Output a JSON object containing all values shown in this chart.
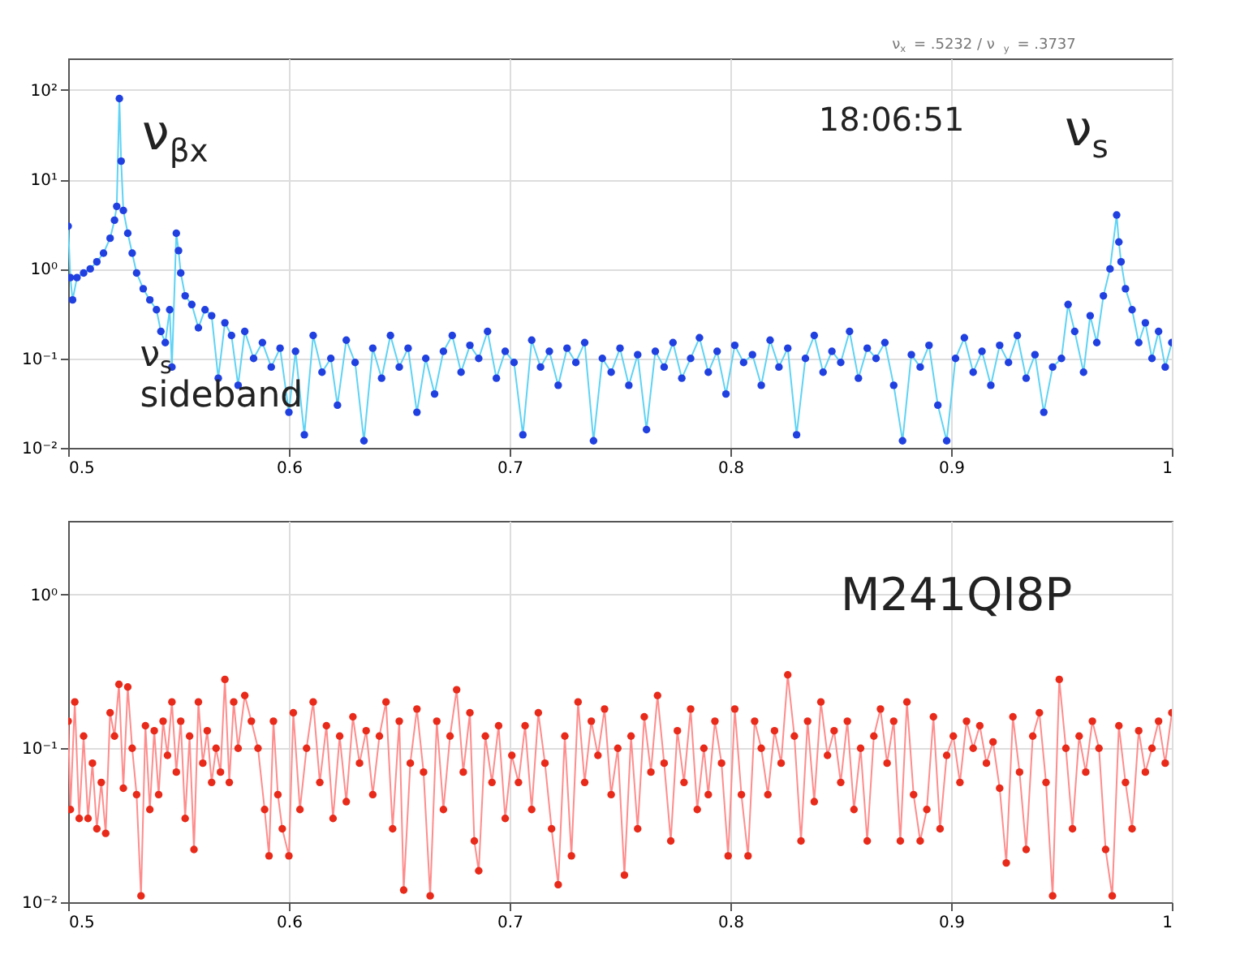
{
  "chart_data": [
    {
      "type": "scatter",
      "subtitle": "ν$_{x}$ = .5232 / ν$_{y}$ = .3737",
      "grid": true,
      "xlim": [
        0.5,
        1
      ],
      "xticks": [
        0.5,
        0.6,
        0.7,
        0.8,
        0.9,
        1
      ],
      "ylim": [
        0.01,
        225
      ],
      "log": true,
      "yticks": [
        {
          "value": 0.01,
          "label": "10⁻²"
        },
        {
          "value": 0.1,
          "label": "10⁻¹"
        },
        {
          "value": 1,
          "label": "10⁰"
        },
        {
          "value": 10,
          "label": "10¹"
        },
        {
          "value": 100,
          "label": "10²"
        }
      ],
      "annotations": [
        {
          "text": "ν$_{βx}$",
          "x": 0.5232,
          "y": 80
        },
        "18:06:51",
        {
          "text": "ν$_{s}$",
          "x": 0.975,
          "y": 4
        },
        "ν$_{s}$\nsideband"
      ],
      "series": [
        {
          "type": "line",
          "marker": "none",
          "color": "#5fd3f5",
          "x": [
            0.5,
            0.501,
            0.502,
            0.504,
            0.507,
            0.51,
            0.513,
            0.516,
            0.519,
            0.521,
            0.522,
            0.5232,
            0.524,
            0.525,
            0.527,
            0.529,
            0.531,
            0.534,
            0.537,
            0.54,
            0.542,
            0.544,
            0.546,
            0.547,
            0.549,
            0.55,
            0.551,
            0.553,
            0.556,
            0.559,
            0.562,
            0.565,
            0.568,
            0.571,
            0.574,
            0.577,
            0.58,
            0.584,
            0.588,
            0.592,
            0.596,
            0.6,
            0.603,
            0.607,
            0.611,
            0.615,
            0.619,
            0.622,
            0.626,
            0.63,
            0.634,
            0.638,
            0.642,
            0.646,
            0.65,
            0.654,
            0.658,
            0.662,
            0.666,
            0.67,
            0.674,
            0.678,
            0.682,
            0.686,
            0.69,
            0.694,
            0.698,
            0.702,
            0.706,
            0.71,
            0.714,
            0.718,
            0.722,
            0.726,
            0.73,
            0.734,
            0.738,
            0.742,
            0.746,
            0.75,
            0.754,
            0.758,
            0.762,
            0.766,
            0.77,
            0.774,
            0.778,
            0.782,
            0.786,
            0.79,
            0.794,
            0.798,
            0.802,
            0.806,
            0.81,
            0.814,
            0.818,
            0.822,
            0.826,
            0.83,
            0.834,
            0.838,
            0.842,
            0.846,
            0.85,
            0.854,
            0.858,
            0.862,
            0.866,
            0.87,
            0.874,
            0.878,
            0.882,
            0.886,
            0.89,
            0.894,
            0.898,
            0.902,
            0.906,
            0.91,
            0.914,
            0.918,
            0.922,
            0.926,
            0.93,
            0.934,
            0.938,
            0.942,
            0.946,
            0.95,
            0.953,
            0.956,
            0.96,
            0.963,
            0.966,
            0.969,
            0.972,
            0.975,
            0.976,
            0.977,
            0.979,
            0.982,
            0.985,
            0.988,
            0.991,
            0.994,
            0.997,
            1.0
          ],
          "values": [
            3,
            0.8,
            0.45,
            0.8,
            0.9,
            1.0,
            1.2,
            1.5,
            2.2,
            3.5,
            5,
            80,
            16,
            4.5,
            2.5,
            1.5,
            0.9,
            0.6,
            0.45,
            0.35,
            0.2,
            0.15,
            0.35,
            0.08,
            2.5,
            1.6,
            0.9,
            0.5,
            0.4,
            0.22,
            0.35,
            0.3,
            0.06,
            0.25,
            0.18,
            0.05,
            0.2,
            0.1,
            0.15,
            0.08,
            0.13,
            0.025,
            0.12,
            0.014,
            0.18,
            0.07,
            0.1,
            0.03,
            0.16,
            0.09,
            0.012,
            0.13,
            0.06,
            0.18,
            0.08,
            0.13,
            0.025,
            0.1,
            0.04,
            0.12,
            0.18,
            0.07,
            0.14,
            0.1,
            0.2,
            0.06,
            0.12,
            0.09,
            0.014,
            0.16,
            0.08,
            0.12,
            0.05,
            0.13,
            0.09,
            0.15,
            0.012,
            0.1,
            0.07,
            0.13,
            0.05,
            0.11,
            0.016,
            0.12,
            0.08,
            0.15,
            0.06,
            0.1,
            0.17,
            0.07,
            0.12,
            0.04,
            0.14,
            0.09,
            0.11,
            0.05,
            0.16,
            0.08,
            0.13,
            0.014,
            0.1,
            0.18,
            0.07,
            0.12,
            0.09,
            0.2,
            0.06,
            0.13,
            0.1,
            0.15,
            0.05,
            0.012,
            0.11,
            0.08,
            0.14,
            0.03,
            0.012,
            0.1,
            0.17,
            0.07,
            0.12,
            0.05,
            0.14,
            0.09,
            0.18,
            0.06,
            0.11,
            0.025,
            0.08,
            0.1,
            0.4,
            0.2,
            0.07,
            0.3,
            0.15,
            0.5,
            1.0,
            4,
            2,
            1.2,
            0.6,
            0.35,
            0.15,
            0.25,
            0.1,
            0.2,
            0.08,
            0.15
          ]
        },
        {
          "marker": "circle",
          "color": "#2040e0",
          "x": [
            0.5,
            0.501,
            0.502,
            0.504,
            0.507,
            0.51,
            0.513,
            0.516,
            0.519,
            0.521,
            0.522,
            0.5232,
            0.524,
            0.525,
            0.527,
            0.529,
            0.531,
            0.534,
            0.537,
            0.54,
            0.542,
            0.544,
            0.546,
            0.547,
            0.549,
            0.55,
            0.551,
            0.553,
            0.556,
            0.559,
            0.562,
            0.565,
            0.568,
            0.571,
            0.574,
            0.577,
            0.58,
            0.584,
            0.588,
            0.592,
            0.596,
            0.6,
            0.603,
            0.607,
            0.611,
            0.615,
            0.619,
            0.622,
            0.626,
            0.63,
            0.634,
            0.638,
            0.642,
            0.646,
            0.65,
            0.654,
            0.658,
            0.662,
            0.666,
            0.67,
            0.674,
            0.678,
            0.682,
            0.686,
            0.69,
            0.694,
            0.698,
            0.702,
            0.706,
            0.71,
            0.714,
            0.718,
            0.722,
            0.726,
            0.73,
            0.734,
            0.738,
            0.742,
            0.746,
            0.75,
            0.754,
            0.758,
            0.762,
            0.766,
            0.77,
            0.774,
            0.778,
            0.782,
            0.786,
            0.79,
            0.794,
            0.798,
            0.802,
            0.806,
            0.81,
            0.814,
            0.818,
            0.822,
            0.826,
            0.83,
            0.834,
            0.838,
            0.842,
            0.846,
            0.85,
            0.854,
            0.858,
            0.862,
            0.866,
            0.87,
            0.874,
            0.878,
            0.882,
            0.886,
            0.89,
            0.894,
            0.898,
            0.902,
            0.906,
            0.91,
            0.914,
            0.918,
            0.922,
            0.926,
            0.93,
            0.934,
            0.938,
            0.942,
            0.946,
            0.95,
            0.953,
            0.956,
            0.96,
            0.963,
            0.966,
            0.969,
            0.972,
            0.975,
            0.976,
            0.977,
            0.979,
            0.982,
            0.985,
            0.988,
            0.991,
            0.994,
            0.997,
            1.0
          ],
          "values": [
            3,
            0.8,
            0.45,
            0.8,
            0.9,
            1.0,
            1.2,
            1.5,
            2.2,
            3.5,
            5,
            80,
            16,
            4.5,
            2.5,
            1.5,
            0.9,
            0.6,
            0.45,
            0.35,
            0.2,
            0.15,
            0.35,
            0.08,
            2.5,
            1.6,
            0.9,
            0.5,
            0.4,
            0.22,
            0.35,
            0.3,
            0.06,
            0.25,
            0.18,
            0.05,
            0.2,
            0.1,
            0.15,
            0.08,
            0.13,
            0.025,
            0.12,
            0.014,
            0.18,
            0.07,
            0.1,
            0.03,
            0.16,
            0.09,
            0.012,
            0.13,
            0.06,
            0.18,
            0.08,
            0.13,
            0.025,
            0.1,
            0.04,
            0.12,
            0.18,
            0.07,
            0.14,
            0.1,
            0.2,
            0.06,
            0.12,
            0.09,
            0.014,
            0.16,
            0.08,
            0.12,
            0.05,
            0.13,
            0.09,
            0.15,
            0.012,
            0.1,
            0.07,
            0.13,
            0.05,
            0.11,
            0.016,
            0.12,
            0.08,
            0.15,
            0.06,
            0.1,
            0.17,
            0.07,
            0.12,
            0.04,
            0.14,
            0.09,
            0.11,
            0.05,
            0.16,
            0.08,
            0.13,
            0.014,
            0.1,
            0.18,
            0.07,
            0.12,
            0.09,
            0.2,
            0.06,
            0.13,
            0.1,
            0.15,
            0.05,
            0.012,
            0.11,
            0.08,
            0.14,
            0.03,
            0.012,
            0.1,
            0.17,
            0.07,
            0.12,
            0.05,
            0.14,
            0.09,
            0.18,
            0.06,
            0.11,
            0.025,
            0.08,
            0.1,
            0.4,
            0.2,
            0.07,
            0.3,
            0.15,
            0.5,
            1.0,
            4,
            2,
            1.2,
            0.6,
            0.35,
            0.15,
            0.25,
            0.1,
            0.2,
            0.08,
            0.15
          ]
        }
      ]
    },
    {
      "type": "scatter",
      "grid": true,
      "xlim": [
        0.5,
        1
      ],
      "xticks": [
        0.5,
        0.6,
        0.7,
        0.8,
        0.9,
        1
      ],
      "ylim": [
        0.01,
        3
      ],
      "log": true,
      "yticks": [
        {
          "value": 0.01,
          "label": "10⁻²"
        },
        {
          "value": 0.1,
          "label": "10⁻¹"
        },
        {
          "value": 1,
          "label": "10⁰"
        }
      ],
      "annotations": [
        "M241QI8P"
      ],
      "series": [
        {
          "type": "line",
          "marker": "none",
          "color": "#ff8c8c",
          "x": [
            0.5,
            0.501,
            0.503,
            0.505,
            0.507,
            0.509,
            0.511,
            0.513,
            0.515,
            0.517,
            0.519,
            0.521,
            0.523,
            0.525,
            0.527,
            0.529,
            0.531,
            0.533,
            0.535,
            0.537,
            0.539,
            0.541,
            0.543,
            0.545,
            0.547,
            0.549,
            0.551,
            0.553,
            0.555,
            0.557,
            0.559,
            0.561,
            0.563,
            0.565,
            0.567,
            0.569,
            0.571,
            0.573,
            0.575,
            0.577,
            0.58,
            0.583,
            0.586,
            0.589,
            0.591,
            0.593,
            0.595,
            0.597,
            0.6,
            0.602,
            0.605,
            0.608,
            0.611,
            0.614,
            0.617,
            0.62,
            0.623,
            0.626,
            0.629,
            0.632,
            0.635,
            0.638,
            0.641,
            0.644,
            0.647,
            0.65,
            0.652,
            0.655,
            0.658,
            0.661,
            0.664,
            0.667,
            0.67,
            0.673,
            0.676,
            0.679,
            0.682,
            0.684,
            0.686,
            0.689,
            0.692,
            0.695,
            0.698,
            0.701,
            0.704,
            0.707,
            0.71,
            0.713,
            0.716,
            0.719,
            0.722,
            0.725,
            0.728,
            0.731,
            0.734,
            0.737,
            0.74,
            0.743,
            0.746,
            0.749,
            0.752,
            0.755,
            0.758,
            0.761,
            0.764,
            0.767,
            0.77,
            0.773,
            0.776,
            0.779,
            0.782,
            0.785,
            0.788,
            0.79,
            0.793,
            0.796,
            0.799,
            0.802,
            0.805,
            0.808,
            0.811,
            0.814,
            0.817,
            0.82,
            0.823,
            0.826,
            0.829,
            0.832,
            0.835,
            0.838,
            0.841,
            0.844,
            0.847,
            0.85,
            0.853,
            0.856,
            0.859,
            0.862,
            0.865,
            0.868,
            0.871,
            0.874,
            0.877,
            0.88,
            0.883,
            0.886,
            0.889,
            0.892,
            0.895,
            0.898,
            0.901,
            0.904,
            0.907,
            0.91,
            0.913,
            0.916,
            0.919,
            0.922,
            0.925,
            0.928,
            0.931,
            0.934,
            0.937,
            0.94,
            0.943,
            0.946,
            0.949,
            0.952,
            0.955,
            0.958,
            0.961,
            0.964,
            0.967,
            0.97,
            0.973,
            0.976,
            0.979,
            0.982,
            0.985,
            0.988,
            0.991,
            0.994,
            0.997,
            1.0
          ],
          "values": [
            0.15,
            0.04,
            0.2,
            0.035,
            0.12,
            0.035,
            0.08,
            0.03,
            0.06,
            0.028,
            0.17,
            0.12,
            0.26,
            0.055,
            0.25,
            0.1,
            0.05,
            0.011,
            0.14,
            0.04,
            0.13,
            0.05,
            0.15,
            0.09,
            0.2,
            0.07,
            0.15,
            0.035,
            0.12,
            0.022,
            0.2,
            0.08,
            0.13,
            0.06,
            0.1,
            0.07,
            0.28,
            0.06,
            0.2,
            0.1,
            0.22,
            0.15,
            0.1,
            0.04,
            0.02,
            0.15,
            0.05,
            0.03,
            0.02,
            0.17,
            0.04,
            0.1,
            0.2,
            0.06,
            0.14,
            0.035,
            0.12,
            0.045,
            0.16,
            0.08,
            0.13,
            0.05,
            0.12,
            0.2,
            0.03,
            0.15,
            0.012,
            0.08,
            0.18,
            0.07,
            0.011,
            0.15,
            0.04,
            0.12,
            0.24,
            0.07,
            0.17,
            0.025,
            0.016,
            0.12,
            0.06,
            0.14,
            0.035,
            0.09,
            0.06,
            0.14,
            0.04,
            0.17,
            0.08,
            0.03,
            0.013,
            0.12,
            0.02,
            0.2,
            0.06,
            0.15,
            0.09,
            0.18,
            0.05,
            0.1,
            0.015,
            0.12,
            0.03,
            0.16,
            0.07,
            0.22,
            0.08,
            0.025,
            0.13,
            0.06,
            0.18,
            0.04,
            0.1,
            0.05,
            0.15,
            0.08,
            0.02,
            0.18,
            0.05,
            0.02,
            0.15,
            0.1,
            0.05,
            0.13,
            0.08,
            0.3,
            0.12,
            0.025,
            0.15,
            0.045,
            0.2,
            0.09,
            0.13,
            0.06,
            0.15,
            0.04,
            0.1,
            0.025,
            0.12,
            0.18,
            0.08,
            0.15,
            0.025,
            0.2,
            0.05,
            0.025,
            0.04,
            0.16,
            0.03,
            0.09,
            0.12,
            0.06,
            0.15,
            0.1,
            0.14,
            0.08,
            0.11,
            0.055,
            0.018,
            0.16,
            0.07,
            0.022,
            0.12,
            0.17,
            0.06,
            0.011,
            0.28,
            0.1,
            0.03,
            0.12,
            0.07,
            0.15,
            0.1,
            0.022,
            0.011,
            0.14,
            0.06,
            0.03,
            0.13,
            0.07,
            0.1,
            0.15,
            0.08,
            0.17
          ]
        },
        {
          "marker": "circle",
          "color": "#e82a1a",
          "x": [
            0.5,
            0.501,
            0.503,
            0.505,
            0.507,
            0.509,
            0.511,
            0.513,
            0.515,
            0.517,
            0.519,
            0.521,
            0.523,
            0.525,
            0.527,
            0.529,
            0.531,
            0.533,
            0.535,
            0.537,
            0.539,
            0.541,
            0.543,
            0.545,
            0.547,
            0.549,
            0.551,
            0.553,
            0.555,
            0.557,
            0.559,
            0.561,
            0.563,
            0.565,
            0.567,
            0.569,
            0.571,
            0.573,
            0.575,
            0.577,
            0.58,
            0.583,
            0.586,
            0.589,
            0.591,
            0.593,
            0.595,
            0.597,
            0.6,
            0.602,
            0.605,
            0.608,
            0.611,
            0.614,
            0.617,
            0.62,
            0.623,
            0.626,
            0.629,
            0.632,
            0.635,
            0.638,
            0.641,
            0.644,
            0.647,
            0.65,
            0.652,
            0.655,
            0.658,
            0.661,
            0.664,
            0.667,
            0.67,
            0.673,
            0.676,
            0.679,
            0.682,
            0.684,
            0.686,
            0.689,
            0.692,
            0.695,
            0.698,
            0.701,
            0.704,
            0.707,
            0.71,
            0.713,
            0.716,
            0.719,
            0.722,
            0.725,
            0.728,
            0.731,
            0.734,
            0.737,
            0.74,
            0.743,
            0.746,
            0.749,
            0.752,
            0.755,
            0.758,
            0.761,
            0.764,
            0.767,
            0.77,
            0.773,
            0.776,
            0.779,
            0.782,
            0.785,
            0.788,
            0.79,
            0.793,
            0.796,
            0.799,
            0.802,
            0.805,
            0.808,
            0.811,
            0.814,
            0.817,
            0.82,
            0.823,
            0.826,
            0.829,
            0.832,
            0.835,
            0.838,
            0.841,
            0.844,
            0.847,
            0.85,
            0.853,
            0.856,
            0.859,
            0.862,
            0.865,
            0.868,
            0.871,
            0.874,
            0.877,
            0.88,
            0.883,
            0.886,
            0.889,
            0.892,
            0.895,
            0.898,
            0.901,
            0.904,
            0.907,
            0.91,
            0.913,
            0.916,
            0.919,
            0.922,
            0.925,
            0.928,
            0.931,
            0.934,
            0.937,
            0.94,
            0.943,
            0.946,
            0.949,
            0.952,
            0.955,
            0.958,
            0.961,
            0.964,
            0.967,
            0.97,
            0.973,
            0.976,
            0.979,
            0.982,
            0.985,
            0.988,
            0.991,
            0.994,
            0.997,
            1.0
          ],
          "values": [
            0.15,
            0.04,
            0.2,
            0.035,
            0.12,
            0.035,
            0.08,
            0.03,
            0.06,
            0.028,
            0.17,
            0.12,
            0.26,
            0.055,
            0.25,
            0.1,
            0.05,
            0.011,
            0.14,
            0.04,
            0.13,
            0.05,
            0.15,
            0.09,
            0.2,
            0.07,
            0.15,
            0.035,
            0.12,
            0.022,
            0.2,
            0.08,
            0.13,
            0.06,
            0.1,
            0.07,
            0.28,
            0.06,
            0.2,
            0.1,
            0.22,
            0.15,
            0.1,
            0.04,
            0.02,
            0.15,
            0.05,
            0.03,
            0.02,
            0.17,
            0.04,
            0.1,
            0.2,
            0.06,
            0.14,
            0.035,
            0.12,
            0.045,
            0.16,
            0.08,
            0.13,
            0.05,
            0.12,
            0.2,
            0.03,
            0.15,
            0.012,
            0.08,
            0.18,
            0.07,
            0.011,
            0.15,
            0.04,
            0.12,
            0.24,
            0.07,
            0.17,
            0.025,
            0.016,
            0.12,
            0.06,
            0.14,
            0.035,
            0.09,
            0.06,
            0.14,
            0.04,
            0.17,
            0.08,
            0.03,
            0.013,
            0.12,
            0.02,
            0.2,
            0.06,
            0.15,
            0.09,
            0.18,
            0.05,
            0.1,
            0.015,
            0.12,
            0.03,
            0.16,
            0.07,
            0.22,
            0.08,
            0.025,
            0.13,
            0.06,
            0.18,
            0.04,
            0.1,
            0.05,
            0.15,
            0.08,
            0.02,
            0.18,
            0.05,
            0.02,
            0.15,
            0.1,
            0.05,
            0.13,
            0.08,
            0.3,
            0.12,
            0.025,
            0.15,
            0.045,
            0.2,
            0.09,
            0.13,
            0.06,
            0.15,
            0.04,
            0.1,
            0.025,
            0.12,
            0.18,
            0.08,
            0.15,
            0.025,
            0.2,
            0.05,
            0.025,
            0.04,
            0.16,
            0.03,
            0.09,
            0.12,
            0.06,
            0.15,
            0.1,
            0.14,
            0.08,
            0.11,
            0.055,
            0.018,
            0.16,
            0.07,
            0.022,
            0.12,
            0.17,
            0.06,
            0.011,
            0.28,
            0.1,
            0.03,
            0.12,
            0.07,
            0.15,
            0.1,
            0.022,
            0.011,
            0.14,
            0.06,
            0.03,
            0.13,
            0.07,
            0.1,
            0.15,
            0.08,
            0.17
          ]
        }
      ]
    }
  ]
}
